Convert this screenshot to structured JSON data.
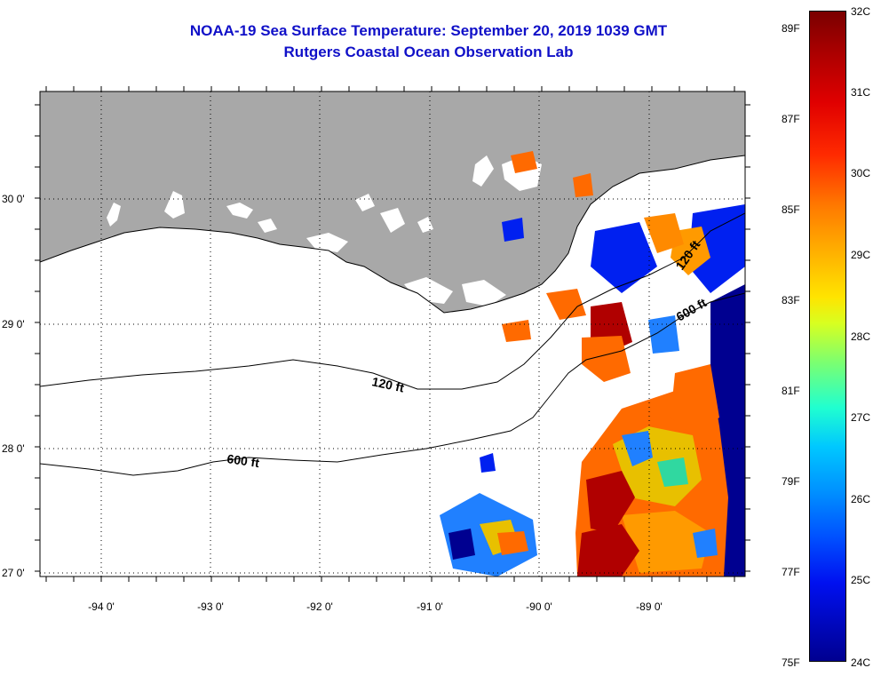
{
  "title": {
    "line1": "NOAA-19 Sea Surface Temperature:  September 20, 2019 1039 GMT",
    "line2": "Rutgers Coastal Ocean Observation Lab"
  },
  "lat_labels": [
    "30 0'",
    "29 0'",
    "28 0'",
    "27 0'"
  ],
  "lon_labels": [
    "-94 0'",
    "-93 0'",
    "-92 0'",
    "-91 0'",
    "-90 0'",
    "-89 0'"
  ],
  "contours": {
    "c120_west": "120 ft",
    "c600_west": "600 ft",
    "c120_east": "120 ft",
    "c600_east": "600 ft"
  },
  "colorbar": {
    "fahrenheit": [
      "89F",
      "87F",
      "85F",
      "83F",
      "81F",
      "79F",
      "77F",
      "75F"
    ],
    "celsius": [
      "32C",
      "31C",
      "30C",
      "29C",
      "28C",
      "27C",
      "26C",
      "25C",
      "24C"
    ]
  },
  "colors": {
    "land": "#a8a8a8",
    "title": "#1010c8",
    "cold": "#000090",
    "warm": "#b00000"
  }
}
